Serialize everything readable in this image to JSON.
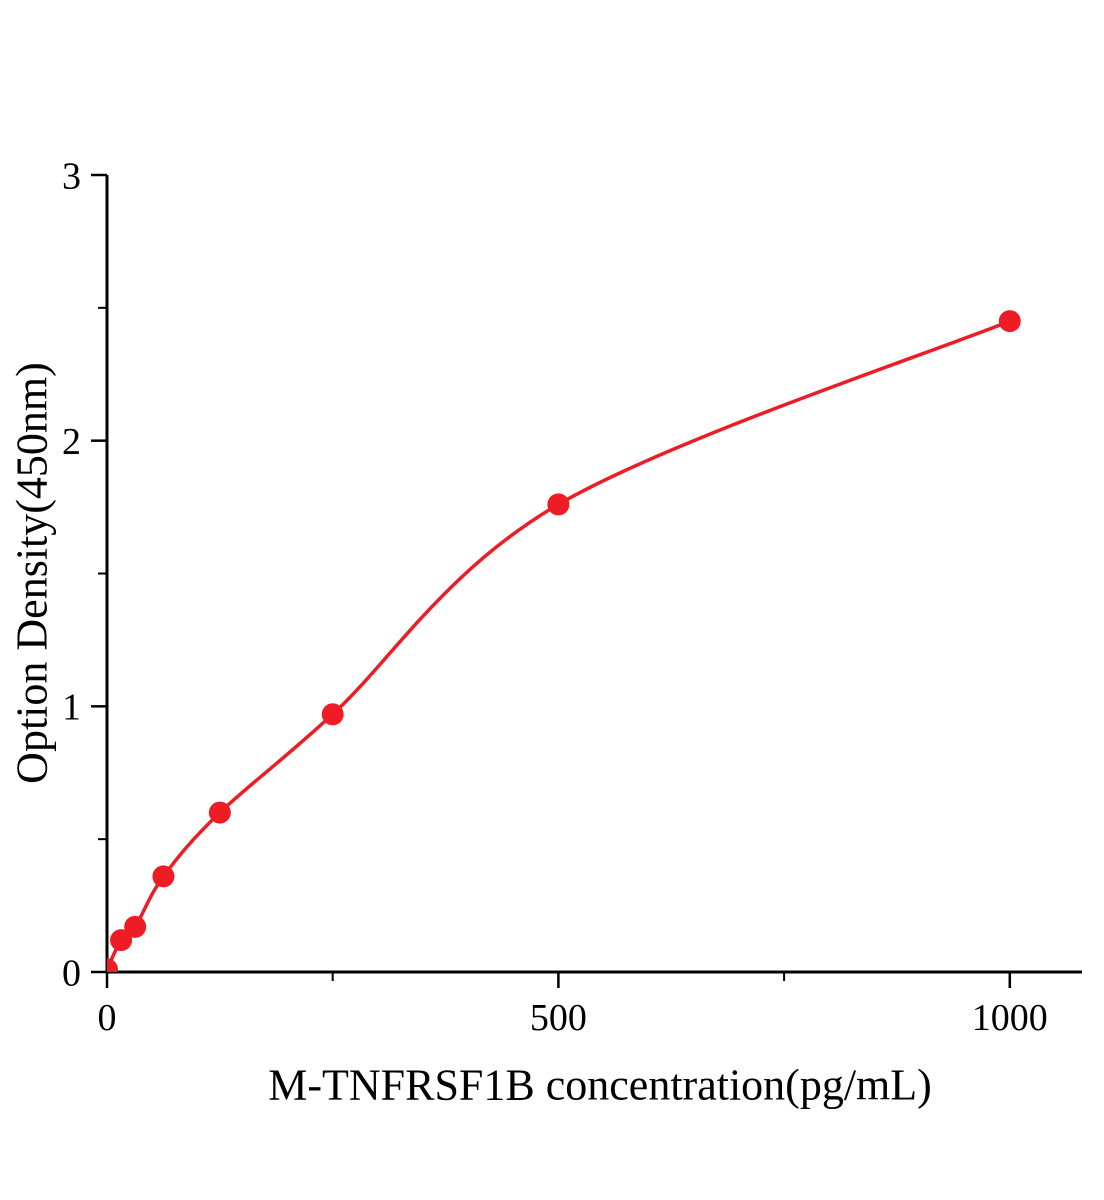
{
  "chart_data": {
    "type": "scatter",
    "title": "",
    "xlabel": "M-TNFRSF1B concentration(pg/mL)",
    "ylabel": "Option Density(450nm)",
    "x": [
      0,
      15.6,
      31.2,
      62.5,
      125,
      250,
      500,
      1000
    ],
    "y": [
      0.01,
      0.12,
      0.17,
      0.36,
      0.6,
      0.97,
      1.76,
      2.45
    ],
    "fit_line": true,
    "xlim": [
      0,
      1080
    ],
    "ylim": [
      0,
      3
    ],
    "x_major_ticks": [
      0,
      500,
      1000
    ],
    "x_minor_ticks": [
      250,
      750
    ],
    "y_major_ticks": [
      0,
      1,
      2,
      3
    ],
    "y_minor_ticks": [
      0.5,
      1.5,
      2.5
    ],
    "marker_color": "#ee1c25",
    "line_color": "#ee1c25",
    "axis_color": "#000000",
    "background": "#ffffff",
    "grid": false,
    "legend": null
  }
}
